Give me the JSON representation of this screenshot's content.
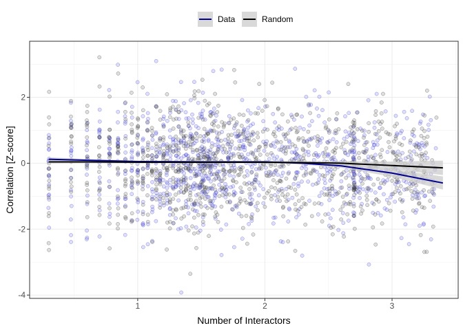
{
  "chart_data": {
    "type": "scatter",
    "xlabel": "Number of Interactors",
    "ylabel": "Correlation [Z-score]",
    "xlim": [
      0.15,
      3.52
    ],
    "ylim": [
      -4.1,
      3.7
    ],
    "x_ticks": [
      1,
      2,
      3
    ],
    "x_tick_labels": [
      "1",
      "2",
      "3"
    ],
    "y_ticks": [
      -4,
      -2,
      0,
      2
    ],
    "y_tick_labels": [
      "-4",
      "-2",
      "0",
      "2"
    ],
    "grid": true,
    "legend_position": "top",
    "series": [
      {
        "name": "Data",
        "color": "#00008b",
        "point_color": "#3b3bd0",
        "band_color": "#cccccc",
        "trend": [
          {
            "x": 0.3,
            "y": 0.12
          },
          {
            "x": 0.6,
            "y": 0.09
          },
          {
            "x": 1.0,
            "y": 0.05
          },
          {
            "x": 1.5,
            "y": 0.04
          },
          {
            "x": 2.0,
            "y": 0.04
          },
          {
            "x": 2.3,
            "y": 0.0
          },
          {
            "x": 2.6,
            "y": -0.08
          },
          {
            "x": 3.0,
            "y": -0.3
          },
          {
            "x": 3.4,
            "y": -0.6
          }
        ],
        "band_halfwidth": [
          0.06,
          0.04,
          0.03,
          0.03,
          0.03,
          0.04,
          0.06,
          0.11,
          0.2
        ]
      },
      {
        "name": "Random",
        "color": "#000000",
        "point_color": "#3a3a3a",
        "band_color": "#cccccc",
        "trend": [
          {
            "x": 0.3,
            "y": 0.04
          },
          {
            "x": 0.6,
            "y": 0.04
          },
          {
            "x": 1.0,
            "y": 0.03
          },
          {
            "x": 1.5,
            "y": 0.03
          },
          {
            "x": 2.0,
            "y": 0.03
          },
          {
            "x": 2.3,
            "y": 0.02
          },
          {
            "x": 2.6,
            "y": 0.0
          },
          {
            "x": 3.0,
            "y": -0.07
          },
          {
            "x": 3.4,
            "y": -0.14
          }
        ],
        "band_halfwidth": [
          0.05,
          0.04,
          0.03,
          0.03,
          0.03,
          0.04,
          0.06,
          0.12,
          0.22
        ]
      }
    ]
  }
}
